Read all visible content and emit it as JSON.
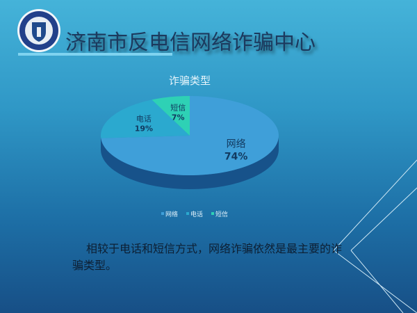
{
  "header": {
    "title": "济南市反电信网络诈骗中心",
    "logo_text": "济南市反电信网络诈骗中心"
  },
  "chart_data": {
    "type": "pie",
    "title": "诈骗类型",
    "categories": [
      "网络",
      "电话",
      "短信"
    ],
    "values": [
      74,
      19,
      7
    ],
    "labels": [
      "74%",
      "19%",
      "7%"
    ],
    "colors": [
      "#3f9fd9",
      "#2ba9cf",
      "#2ed1b5"
    ],
    "legend": "bottom",
    "style": "3d"
  },
  "caption": "相较于电话和短信方式，网络诈骗依然是最主要的诈骗类型。"
}
